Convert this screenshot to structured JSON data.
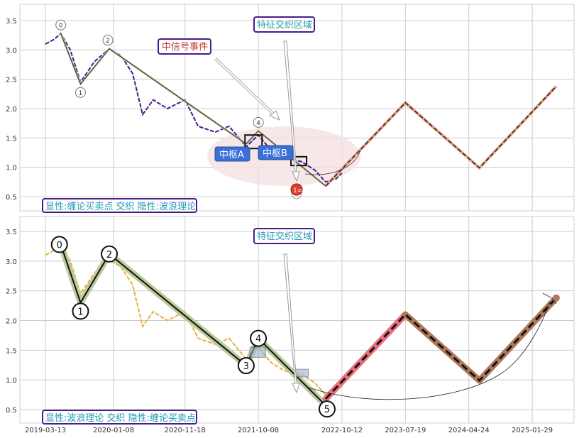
{
  "chart_data": [
    {
      "type": "line",
      "title": "",
      "xlabel": "",
      "ylabel": "",
      "ylim": [
        0.3,
        3.8
      ],
      "yticks": [
        "0.5",
        "1.0",
        "1.5",
        "2.0",
        "2.5",
        "3.0",
        "3.5"
      ],
      "grid": true,
      "annotations": {
        "bottom_label": "显性:缠论买卖点 交织 隐性:波浪理论",
        "event_label": "中信号事件",
        "zone_label": "特征交织区域",
        "zhongshu_a": "中枢A",
        "zhongshu_b": "中枢B",
        "signal_marker": "1="
      },
      "pivot_labels": [
        "0",
        "1",
        "2",
        "4"
      ],
      "series": [
        {
          "values": [
            [
              "2019-03-13",
              3.1
            ],
            [
              "2019-04-20",
              3.18
            ],
            [
              "2019-05-20",
              3.28
            ],
            [
              "2019-07-01",
              3.0
            ],
            [
              "2019-08-15",
              2.45
            ],
            [
              "2019-10-15",
              2.8
            ],
            [
              "2019-12-20",
              3.02
            ],
            [
              "2020-02-10",
              2.9
            ],
            [
              "2020-04-01",
              2.6
            ],
            [
              "2020-05-15",
              1.9
            ],
            [
              "2020-07-01",
              2.15
            ],
            [
              "2020-09-01",
              2.0
            ],
            [
              "2020-11-18",
              2.15
            ],
            [
              "2021-01-15",
              1.7
            ],
            [
              "2021-04-01",
              1.6
            ],
            [
              "2021-06-01",
              1.7
            ],
            [
              "2021-08-15",
              1.35
            ],
            [
              "2021-10-08",
              1.55
            ],
            [
              "2021-12-01",
              1.3
            ],
            [
              "2022-02-01",
              1.15
            ],
            [
              "2022-04-15",
              1.1
            ],
            [
              "2022-06-15",
              0.95
            ],
            [
              "2022-08-01",
              0.75
            ],
            [
              "2022-09-15",
              0.8
            ],
            [
              "2022-10-12",
              0.9
            ]
          ]
        },
        {
          "values": [
            [
              "2019-05-20",
              3.28
            ],
            [
              "2019-08-15",
              2.42
            ],
            [
              "2019-12-20",
              3.02
            ],
            [
              "2021-08-15",
              1.4
            ],
            [
              "2021-10-08",
              1.62
            ],
            [
              "2022-08-01",
              0.68
            ],
            [
              "2023-07-19",
              2.1
            ],
            [
              "2024-06-10",
              0.99
            ],
            [
              "2025-05-15",
              2.38
            ]
          ]
        }
      ]
    },
    {
      "type": "line",
      "title": "",
      "xlabel": "",
      "ylabel": "",
      "ylim": [
        0.3,
        3.8
      ],
      "yticks": [
        "0.5",
        "1.0",
        "1.5",
        "2.0",
        "2.5",
        "3.0",
        "3.5"
      ],
      "xticks": [
        "2019-03-13",
        "2020-01-08",
        "2020-11-18",
        "2021-10-08",
        "2022-10-12",
        "2023-07-19",
        "2024-04-24",
        "2025-01-29"
      ],
      "grid": true,
      "annotations": {
        "bottom_label": "显性:波浪理论 交织 隐性:缠论买卖点",
        "zone_label": "特征交织区域"
      },
      "wave_labels": [
        "0",
        "1",
        "2",
        "3",
        "4",
        "5"
      ],
      "series": [
        {
          "values": [
            [
              "2019-03-13",
              3.1
            ],
            [
              "2019-04-20",
              3.18
            ],
            [
              "2019-05-20",
              3.28
            ],
            [
              "2019-07-01",
              3.0
            ],
            [
              "2019-08-15",
              2.45
            ],
            [
              "2019-10-15",
              2.8
            ],
            [
              "2019-12-20",
              3.02
            ],
            [
              "2020-02-10",
              2.9
            ],
            [
              "2020-04-01",
              2.6
            ],
            [
              "2020-05-15",
              1.9
            ],
            [
              "2020-07-01",
              2.15
            ],
            [
              "2020-09-01",
              2.0
            ],
            [
              "2020-11-18",
              2.15
            ],
            [
              "2021-01-15",
              1.7
            ],
            [
              "2021-04-01",
              1.6
            ],
            [
              "2021-06-01",
              1.7
            ],
            [
              "2021-08-15",
              1.35
            ],
            [
              "2021-10-08",
              1.55
            ],
            [
              "2021-12-01",
              1.3
            ],
            [
              "2022-02-01",
              1.15
            ],
            [
              "2022-04-15",
              1.1
            ],
            [
              "2022-06-15",
              0.95
            ],
            [
              "2022-08-01",
              0.75
            ],
            [
              "2022-09-15",
              0.8
            ],
            [
              "2022-10-12",
              0.9
            ]
          ]
        },
        {
          "values": [
            [
              "2019-05-20",
              3.28
            ],
            [
              "2019-08-15",
              2.3
            ],
            [
              "2019-12-20",
              3.12
            ],
            [
              "2021-08-15",
              1.24
            ],
            [
              "2021-10-08",
              1.7
            ],
            [
              "2022-08-01",
              0.57
            ]
          ]
        },
        {
          "values": [
            [
              "2022-08-01",
              0.68
            ],
            [
              "2023-07-19",
              2.1
            ],
            [
              "2024-06-10",
              0.99
            ],
            [
              "2025-05-15",
              2.38
            ]
          ]
        }
      ]
    }
  ],
  "colors": {
    "price_top": "#4b1b8a",
    "price_bottom": "#e8b23a",
    "projection_top": "#e7a08a",
    "projection_red": "#e8707a",
    "projection_brown": "#b0785a",
    "wave_band": "#bccb9a",
    "label_teal": "#1f9bb0",
    "label_red": "#c0392b",
    "box_border": "#4b1b8a",
    "zhongshu_fill": "#3b6fd8",
    "ellipse": "#f6dfe2",
    "signal_red": "#e43b2c"
  }
}
